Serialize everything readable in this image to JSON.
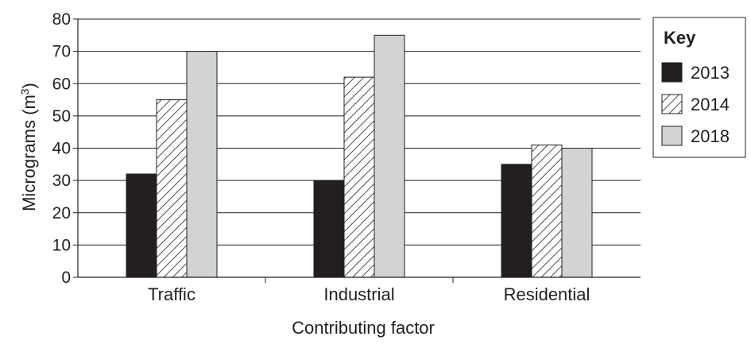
{
  "chart_data": {
    "type": "bar",
    "title": "",
    "xlabel": "Contributing factor",
    "ylabel": "Micrograms (m",
    "ylabel_superscript": "3",
    "ylabel_close": ")",
    "ylim": [
      0,
      80
    ],
    "yticks": [
      0,
      10,
      20,
      30,
      40,
      50,
      60,
      70,
      80
    ],
    "grid": true,
    "legend_title": "Key",
    "legend_position": "right",
    "categories": [
      "Traffic",
      "Industrial",
      "Residential"
    ],
    "series": [
      {
        "name": "2013",
        "values": [
          32,
          30,
          35
        ],
        "fill": "#231f20",
        "pattern": "solid"
      },
      {
        "name": "2014",
        "values": [
          55,
          62,
          41
        ],
        "fill": "#ffffff",
        "pattern": "hatch"
      },
      {
        "name": "2018",
        "values": [
          70,
          75,
          40
        ],
        "fill": "#d1d3d4",
        "pattern": "solid"
      }
    ]
  }
}
